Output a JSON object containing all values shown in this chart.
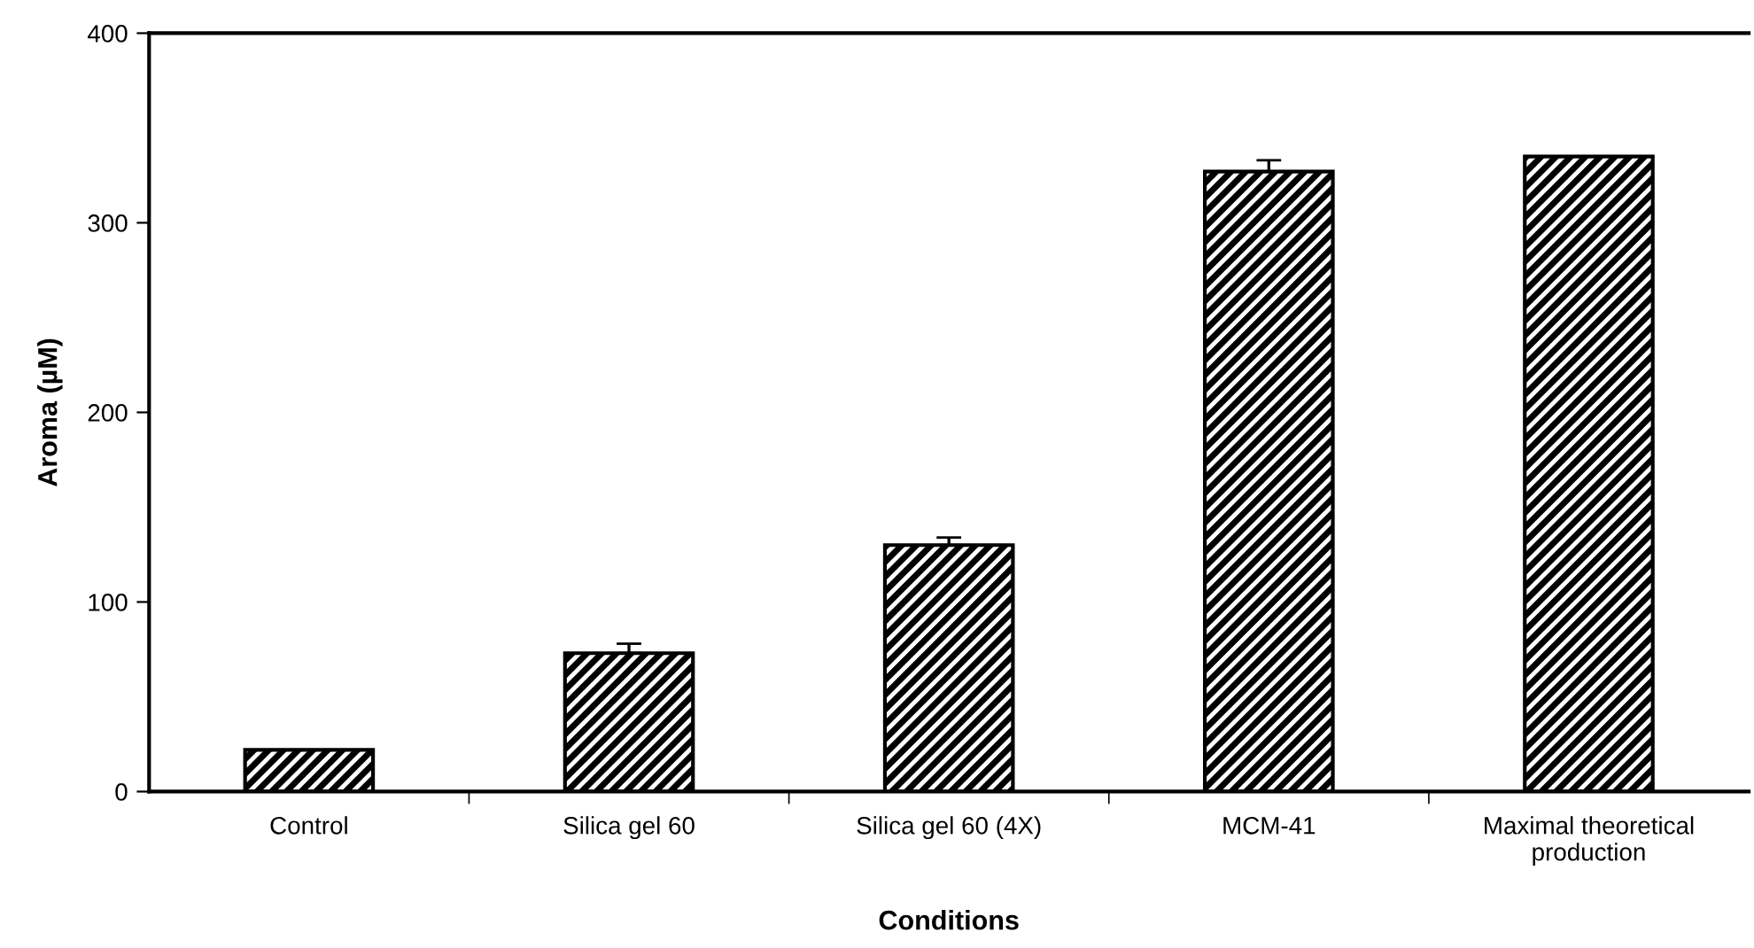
{
  "chart_data": {
    "type": "bar",
    "xlabel": "Conditions",
    "ylabel": "Aroma (µM)",
    "categories": [
      "Control",
      "Silica gel 60",
      "Silica gel 60 (4X)",
      "MCM-41",
      "Maximal theoretical\nproduction"
    ],
    "values": [
      22,
      73,
      130,
      327,
      335
    ],
    "errors": [
      null,
      5,
      4,
      6,
      null
    ],
    "color": "#000000",
    "ylim": [
      0,
      400
    ],
    "yticks": [
      0,
      100,
      200,
      300,
      400
    ],
    "grid": false
  }
}
